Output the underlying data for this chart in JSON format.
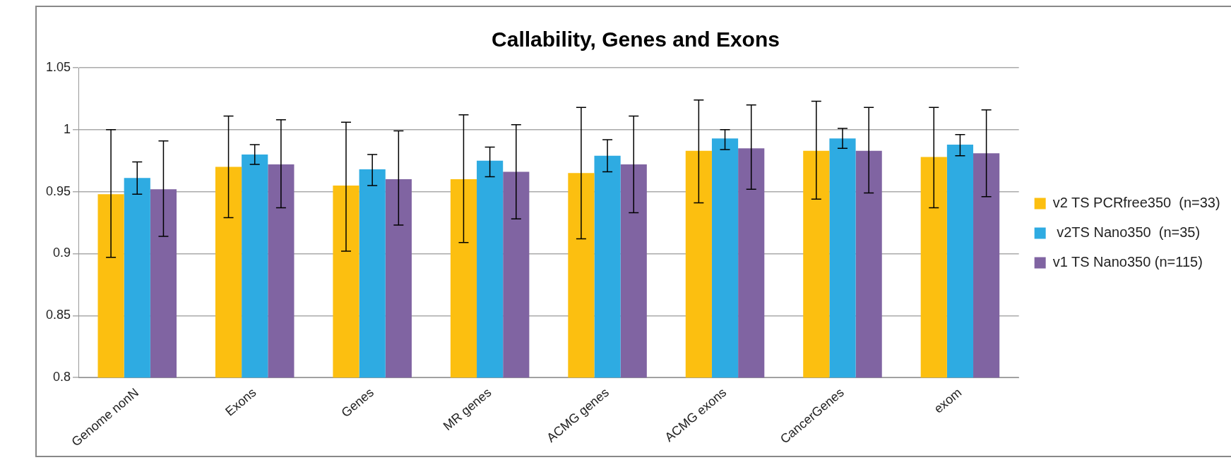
{
  "chart_data": {
    "type": "bar",
    "title": "Callability, Genes and Exons",
    "categories": [
      "Genome nonN",
      "Exons",
      "Genes",
      "MR genes",
      "ACMG genes",
      "ACMG exons",
      "CancerGenes",
      "exom"
    ],
    "series": [
      {
        "name": "v2 TS PCRfree350  (n=33)",
        "color": "#fcbf10",
        "values": [
          0.948,
          0.97,
          0.955,
          0.96,
          0.965,
          0.983,
          0.983,
          0.978
        ],
        "errors": [
          [
            0.897,
            1.0
          ],
          [
            0.929,
            1.011
          ],
          [
            0.902,
            1.006
          ],
          [
            0.909,
            1.012
          ],
          [
            0.912,
            1.018
          ],
          [
            0.941,
            1.024
          ],
          [
            0.944,
            1.023
          ],
          [
            0.937,
            1.018
          ]
        ]
      },
      {
        "name": " v2TS Nano350  (n=35)",
        "color": "#2eabe2",
        "values": [
          0.961,
          0.98,
          0.968,
          0.975,
          0.979,
          0.993,
          0.993,
          0.988
        ],
        "errors": [
          [
            0.948,
            0.974
          ],
          [
            0.972,
            0.988
          ],
          [
            0.955,
            0.98
          ],
          [
            0.962,
            0.986
          ],
          [
            0.966,
            0.992
          ],
          [
            0.984,
            1.0
          ],
          [
            0.985,
            1.001
          ],
          [
            0.979,
            0.996
          ]
        ]
      },
      {
        "name": "v1 TS Nano350 (n=115)",
        "color": "#8064a2",
        "values": [
          0.952,
          0.972,
          0.96,
          0.966,
          0.972,
          0.985,
          0.983,
          0.981
        ],
        "errors": [
          [
            0.914,
            0.991
          ],
          [
            0.937,
            1.008
          ],
          [
            0.923,
            0.999
          ],
          [
            0.928,
            1.004
          ],
          [
            0.933,
            1.011
          ],
          [
            0.952,
            1.02
          ],
          [
            0.949,
            1.018
          ],
          [
            0.946,
            1.016
          ]
        ]
      }
    ],
    "ylim": [
      0.8,
      1.05
    ],
    "yticks": [
      0.8,
      0.85,
      0.9,
      0.95,
      1,
      1.05
    ],
    "grid": "y",
    "legend": "right"
  }
}
